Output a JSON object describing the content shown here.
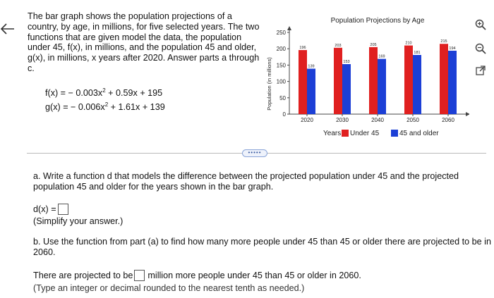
{
  "problem": {
    "text": "The bar graph shows the population projections of a country, by age, in millions, for five selected years. The two functions that are given model the data, the population under 45, f(x), in millions, and the population 45 and older, g(x), in millions, x years after 2020. Answer parts a through c.",
    "f_formula_prefix": "f(x) = − 0.003x",
    "f_formula_suffix": " + 0.59x + 195",
    "g_formula_prefix": "g(x) = − 0.006x",
    "g_formula_suffix": " + 1.61x + 139",
    "exponent": "2"
  },
  "chart_data": {
    "type": "bar",
    "title": "Population Projections by Age",
    "ylabel": "Population (in millions)",
    "xlabel": "Years",
    "categories": [
      "2020",
      "2030",
      "2040",
      "2050",
      "2060"
    ],
    "ylim": [
      0,
      250
    ],
    "yticks": [
      "0",
      "50",
      "100",
      "150",
      "200",
      "250"
    ],
    "series": [
      {
        "name": "Under 45",
        "color": "#e02020",
        "values": [
          196,
          203,
          205,
          210,
          215
        ]
      },
      {
        "name": "45 and older",
        "color": "#1c3fd6",
        "values": [
          139,
          153,
          169,
          181,
          194
        ]
      }
    ],
    "legend_placement": "bottom"
  },
  "divider": {
    "pill_text": "•••••"
  },
  "part_a": {
    "text": "a. Write a function d that models the difference between the projected population under 45 and the projected population 45 and older for the years shown in the bar graph.",
    "answer_label": "d(x) =",
    "note": "(Simplify your answer.)"
  },
  "part_b": {
    "text": "b. Use the function from part (a) to find how many more people under 45 than 45 or older there are projected to be in 2060.",
    "answer_prefix": "There are projected to be",
    "answer_suffix": "million more people under 45 than 45 or older in 2060.",
    "note": "(Type an integer or decimal rounded to the nearest tenth as needed.)"
  },
  "icons": [
    "left-arrow-icon",
    "zoom-in-icon",
    "zoom-out-icon",
    "external-link-icon"
  ]
}
